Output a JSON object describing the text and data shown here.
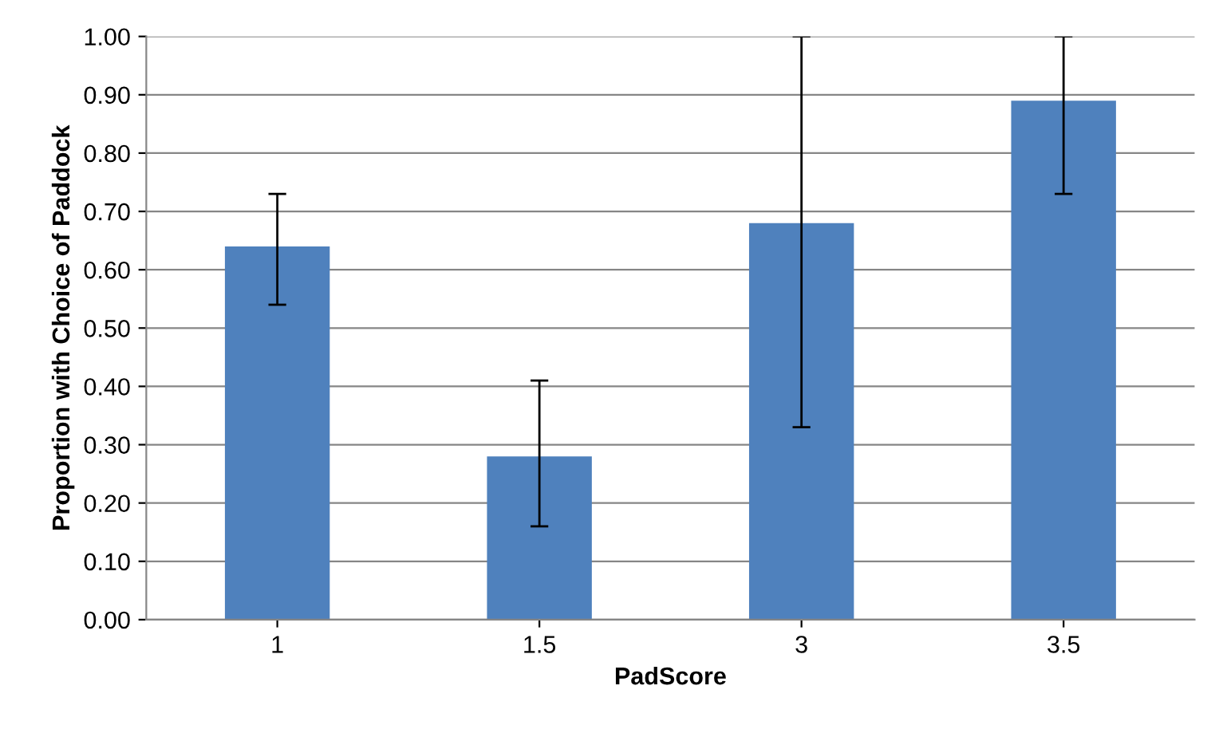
{
  "chart_data": {
    "type": "bar",
    "xlabel": "PadScore",
    "ylabel": "Proportion with Choice of Paddock",
    "categories": [
      "1",
      "1.5",
      "3",
      "3.5"
    ],
    "values": [
      0.64,
      0.28,
      0.68,
      0.89
    ],
    "errors": [
      [
        0.54,
        0.73
      ],
      [
        0.16,
        0.41
      ],
      [
        0.33,
        1.0
      ],
      [
        0.73,
        1.0
      ]
    ],
    "color": "#4f81bd",
    "ylim": [
      0,
      1
    ],
    "yticks": [
      {
        "value": 0,
        "label": "0.00"
      },
      {
        "value": 0.1,
        "label": "0.10"
      },
      {
        "value": 0.2,
        "label": "0.20"
      },
      {
        "value": 0.3,
        "label": "0.30"
      },
      {
        "value": 0.4,
        "label": "0.40"
      },
      {
        "value": 0.5,
        "label": "0.50"
      },
      {
        "value": 0.6,
        "label": "0.60"
      },
      {
        "value": 0.7,
        "label": "0.70"
      },
      {
        "value": 0.8,
        "label": "0.80"
      },
      {
        "value": 0.9,
        "label": "0.90"
      },
      {
        "value": 1.0,
        "label": "1.00"
      }
    ],
    "grid": "y"
  }
}
